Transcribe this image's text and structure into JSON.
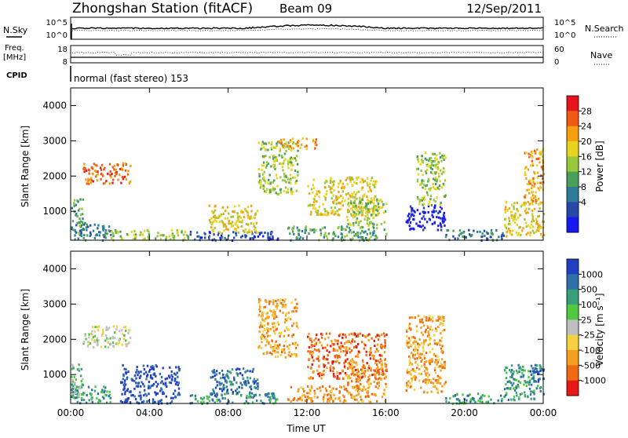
{
  "header": {
    "station": "Zhongshan Station (fitACF)",
    "beam": "Beam 09",
    "date": "12/Sep/2011"
  },
  "panels": {
    "nsky": {
      "left_label": "N.Sky",
      "left_ticks": [
        "10^5",
        "10^0"
      ],
      "right_ticks": [
        "10^5",
        "10^0"
      ],
      "right_label": "N.Search"
    },
    "freq": {
      "left_label_line1": "Freq.",
      "left_label_line2": "[MHz]",
      "left_ticks": [
        "18",
        "8"
      ],
      "right_ticks": [
        "60",
        "0"
      ],
      "right_label": "Nave"
    },
    "cpid": {
      "label": "CPID",
      "text": "normal (fast stereo) 153"
    }
  },
  "chart_data": [
    {
      "type": "heatmap",
      "name": "power",
      "ylabel": "Slant Range [km]",
      "xlabel": "",
      "x_ticks": [
        "00:00",
        "04:00",
        "08:00",
        "12:00",
        "16:00",
        "20:00",
        "00:00"
      ],
      "y_ticks": [
        1000,
        2000,
        3000,
        4000
      ],
      "ylim": [
        180,
        4500
      ],
      "xlim": [
        0,
        24
      ],
      "colorbar": {
        "label": "Power [dB]",
        "ticks": [
          "28",
          "24",
          "20",
          "16",
          "12",
          "8",
          "4"
        ],
        "colors": [
          "#e8141c",
          "#f05a14",
          "#f5a00f",
          "#e8d420",
          "#98c83c",
          "#4aa058",
          "#2e7c98",
          "#2848a8",
          "#1818f0"
        ]
      },
      "regions": [
        {
          "x": [
            0.0,
            2.0
          ],
          "y": [
            200,
            700
          ],
          "level": 6
        },
        {
          "x": [
            0.0,
            0.6
          ],
          "y": [
            300,
            1400
          ],
          "level": 5
        },
        {
          "x": [
            2.0,
            6.0
          ],
          "y": [
            200,
            500
          ],
          "level": 4
        },
        {
          "x": [
            6.0,
            10.5
          ],
          "y": [
            200,
            450
          ],
          "level": 7
        },
        {
          "x": [
            7.0,
            9.5
          ],
          "y": [
            400,
            1200
          ],
          "level": 3
        },
        {
          "x": [
            9.5,
            11.5
          ],
          "y": [
            1500,
            3000
          ],
          "level": 4
        },
        {
          "x": [
            10.5,
            12.5
          ],
          "y": [
            2800,
            3100
          ],
          "level": 2
        },
        {
          "x": [
            11.0,
            16.0
          ],
          "y": [
            200,
            600
          ],
          "level": 5
        },
        {
          "x": [
            12.0,
            15.5
          ],
          "y": [
            900,
            2000
          ],
          "level": 3
        },
        {
          "x": [
            14.0,
            16.0
          ],
          "y": [
            600,
            1400
          ],
          "level": 4
        },
        {
          "x": [
            17.0,
            19.0
          ],
          "y": [
            500,
            1200
          ],
          "level": 8
        },
        {
          "x": [
            17.5,
            19.0
          ],
          "y": [
            1200,
            2700
          ],
          "level": 4
        },
        {
          "x": [
            19.0,
            22.0
          ],
          "y": [
            200,
            500
          ],
          "level": 6
        },
        {
          "x": [
            22.0,
            24.0
          ],
          "y": [
            300,
            1300
          ],
          "level": 3
        },
        {
          "x": [
            23.0,
            24.0
          ],
          "y": [
            1200,
            2800
          ],
          "level": 2
        },
        {
          "x": [
            0.6,
            3.0
          ],
          "y": [
            1800,
            2400
          ],
          "level": 1
        }
      ]
    },
    {
      "type": "heatmap",
      "name": "velocity",
      "ylabel": "Slant Range [km]",
      "xlabel": "Time UT",
      "x_ticks": [
        "00:00",
        "04:00",
        "08:00",
        "12:00",
        "16:00",
        "20:00",
        "00:00"
      ],
      "y_ticks": [
        1000,
        2000,
        3000,
        4000
      ],
      "ylim": [
        180,
        4500
      ],
      "xlim": [
        0,
        24
      ],
      "colorbar": {
        "label": "Velocity [m s⁻¹]",
        "ticks": [
          "1000",
          "500",
          "100",
          "25",
          "-25",
          "-100",
          "-500",
          "-1000"
        ],
        "colors": [
          "#2040c0",
          "#2e70a8",
          "#38a078",
          "#50c840",
          "#c0c0c0",
          "#f5d040",
          "#f5a020",
          "#f06a14",
          "#e81818"
        ]
      },
      "regions": [
        {
          "x": [
            0.0,
            2.0
          ],
          "y": [
            200,
            700
          ],
          "level": 2
        },
        {
          "x": [
            0.0,
            0.6
          ],
          "y": [
            300,
            1400
          ],
          "level": 3
        },
        {
          "x": [
            2.5,
            5.5
          ],
          "y": [
            200,
            1300
          ],
          "level": 0
        },
        {
          "x": [
            6.0,
            10.5
          ],
          "y": [
            200,
            500
          ],
          "level": 2
        },
        {
          "x": [
            7.0,
            9.5
          ],
          "y": [
            400,
            1200
          ],
          "level": 1
        },
        {
          "x": [
            9.5,
            11.5
          ],
          "y": [
            1500,
            3200
          ],
          "level": 6
        },
        {
          "x": [
            11.0,
            16.0
          ],
          "y": [
            250,
            700
          ],
          "level": 6
        },
        {
          "x": [
            12.0,
            16.0
          ],
          "y": [
            900,
            2200
          ],
          "level": 7
        },
        {
          "x": [
            14.0,
            16.0
          ],
          "y": [
            600,
            1400
          ],
          "level": 6
        },
        {
          "x": [
            17.0,
            19.0
          ],
          "y": [
            500,
            2700
          ],
          "level": 6
        },
        {
          "x": [
            19.0,
            22.0
          ],
          "y": [
            200,
            500
          ],
          "level": 2
        },
        {
          "x": [
            22.0,
            24.0
          ],
          "y": [
            300,
            1300
          ],
          "level": 2
        },
        {
          "x": [
            23.3,
            24.0
          ],
          "y": [
            800,
            1300
          ],
          "level": 0
        },
        {
          "x": [
            0.6,
            3.0
          ],
          "y": [
            1800,
            2400
          ],
          "level": 4
        }
      ]
    }
  ]
}
